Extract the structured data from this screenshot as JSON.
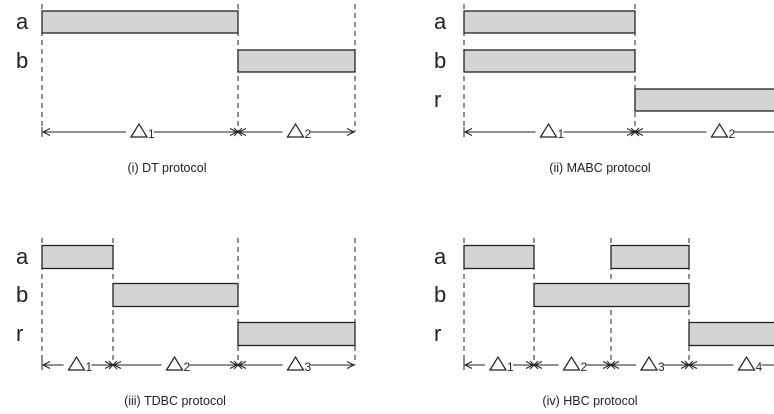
{
  "panels": [
    {
      "caption": "(i) DT protocol",
      "rows": [
        "a",
        "b"
      ],
      "intervals": [
        {
          "index": "1",
          "from": 0,
          "to": 1
        },
        {
          "index": "2",
          "from": 1,
          "to": 2
        }
      ],
      "bars": [
        {
          "row": "a",
          "from": 0,
          "to": 1
        },
        {
          "row": "b",
          "from": 1,
          "to": 2
        }
      ]
    },
    {
      "caption": "(ii) MABC protocol",
      "rows": [
        "a",
        "b",
        "r"
      ],
      "intervals": [
        {
          "index": "1",
          "from": 0,
          "to": 1
        },
        {
          "index": "2",
          "from": 1,
          "to": 2
        }
      ],
      "bars": [
        {
          "row": "a",
          "from": 0,
          "to": 1
        },
        {
          "row": "b",
          "from": 0,
          "to": 1
        },
        {
          "row": "r",
          "from": 1,
          "to": 2
        }
      ]
    },
    {
      "caption": "(iii) TDBC protocol",
      "rows": [
        "a",
        "b",
        "r"
      ],
      "intervals": [
        {
          "index": "1",
          "from": 0,
          "to": 1
        },
        {
          "index": "2",
          "from": 1,
          "to": 2
        },
        {
          "index": "3",
          "from": 2,
          "to": 3
        }
      ],
      "bars": [
        {
          "row": "a",
          "from": 0,
          "to": 1
        },
        {
          "row": "b",
          "from": 1,
          "to": 2
        },
        {
          "row": "r",
          "from": 2,
          "to": 3
        }
      ]
    },
    {
      "caption": "(iv) HBC protocol",
      "rows": [
        "a",
        "b",
        "r"
      ],
      "intervals": [
        {
          "index": "1",
          "from": 0,
          "to": 1
        },
        {
          "index": "2",
          "from": 1,
          "to": 2
        },
        {
          "index": "3",
          "from": 2,
          "to": 3
        },
        {
          "index": "4",
          "from": 3,
          "to": 4
        }
      ],
      "bars": [
        {
          "row": "a",
          "from": 0,
          "to": 1
        },
        {
          "row": "a",
          "from": 2,
          "to": 3
        },
        {
          "row": "b",
          "from": 1,
          "to": 3
        },
        {
          "row": "r",
          "from": 3,
          "to": 4
        }
      ]
    }
  ]
}
